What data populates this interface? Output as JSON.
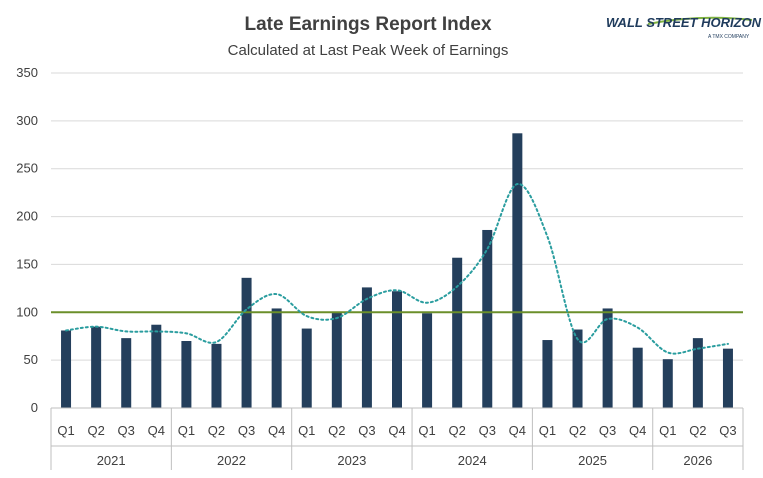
{
  "chart_data": {
    "type": "bar",
    "title": "Late Earnings Report Index",
    "subtitle": "Calculated at Last Peak Week of Earnings",
    "ylim": [
      0,
      350
    ],
    "yticks": [
      0,
      50,
      100,
      150,
      200,
      250,
      300,
      350
    ],
    "grid": "horizontal",
    "groups": [
      {
        "year": "2021",
        "quarters": [
          "Q1",
          "Q2",
          "Q3",
          "Q4"
        ]
      },
      {
        "year": "2022",
        "quarters": [
          "Q1",
          "Q2",
          "Q3",
          "Q4"
        ]
      },
      {
        "year": "2023",
        "quarters": [
          "Q1",
          "Q2",
          "Q3",
          "Q4"
        ]
      },
      {
        "year": "2024",
        "quarters": [
          "Q1",
          "Q2",
          "Q3",
          "Q4"
        ]
      },
      {
        "year": "2025",
        "quarters": [
          "Q1",
          "Q2",
          "Q3",
          "Q4"
        ]
      },
      {
        "year": "2026",
        "quarters": [
          "Q1",
          "Q2",
          "Q3"
        ]
      }
    ],
    "values": [
      81,
      85,
      73,
      87,
      70,
      67,
      136,
      104,
      83,
      100,
      126,
      122,
      99,
      157,
      186,
      287,
      71,
      82,
      104,
      63,
      51,
      73,
      62
    ],
    "trend": [
      81,
      85,
      80,
      80,
      78,
      69,
      103,
      119,
      96,
      94,
      114,
      123,
      110,
      127,
      166,
      234,
      179,
      72,
      93,
      84,
      58,
      62,
      67
    ],
    "reference_line": 100,
    "colors": {
      "bar": "#243f5c",
      "trend": "#2a9d9f",
      "reference": "#6b8f2a",
      "grid": "#d9d9d9",
      "axis": "#bfbfbf"
    }
  },
  "logo": {
    "main_text": "WALL STREET HORIZON",
    "sub_text": "A TMX COMPANY",
    "colors": {
      "main": "#1f3b5c",
      "accent": "#7fb241"
    }
  }
}
